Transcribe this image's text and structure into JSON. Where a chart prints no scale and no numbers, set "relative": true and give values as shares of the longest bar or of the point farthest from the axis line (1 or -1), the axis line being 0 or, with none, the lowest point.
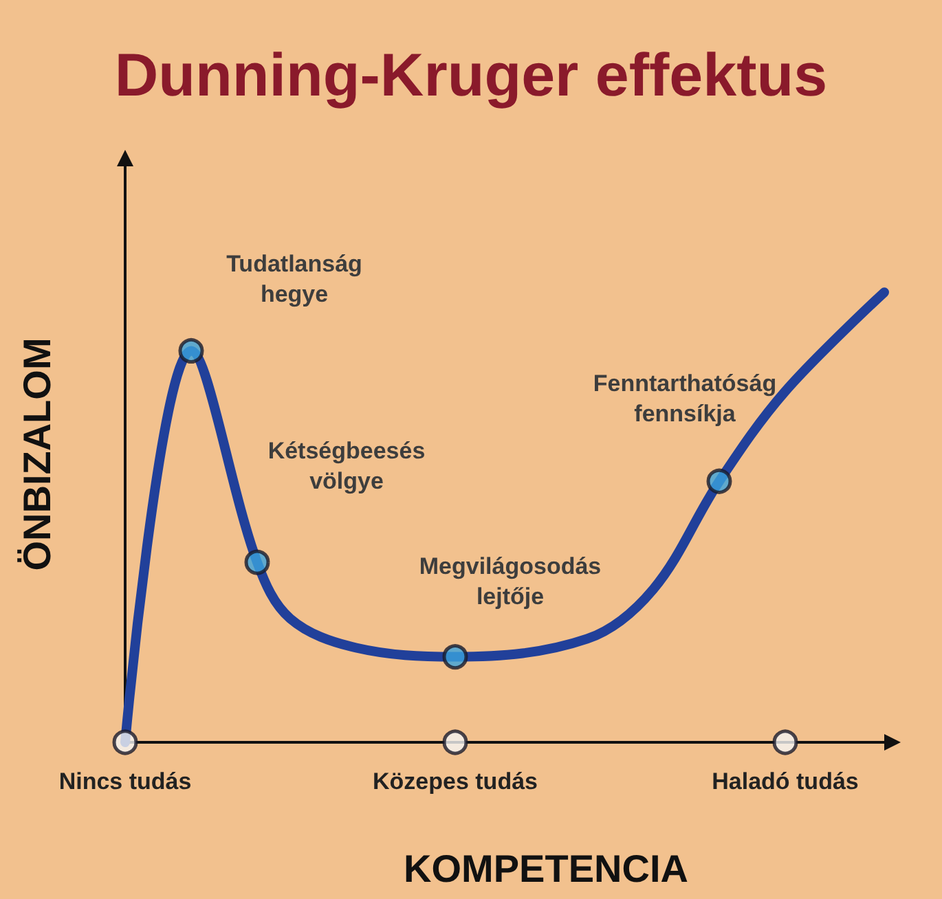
{
  "chart_data": {
    "type": "line",
    "title": "Dunning-Kruger effektus",
    "xlabel": "KOMPETENCIA",
    "ylabel": "ÖNBIZALOM",
    "relative": true,
    "marker": "none",
    "line_style": "solid",
    "categories": [
      "Nincs tudás",
      null,
      null,
      null,
      null,
      null,
      null,
      null,
      null,
      null,
      "Közepes tudás",
      null,
      null,
      null,
      null,
      null,
      null,
      null,
      null,
      null,
      "Haladó tudás",
      null,
      null,
      null
    ],
    "series": [
      {
        "color": "#21409a",
        "values": [
          0,
          null,
          0.87,
          null,
          0.4,
          0.275,
          null,
          0.21,
          null,
          null,
          0.19,
          null,
          null,
          null,
          0.23,
          null,
          0.34,
          null,
          0.58,
          null,
          0.78,
          null,
          null,
          1
        ]
      },
      {
        "type": "scatter",
        "color": "#f4f4f4",
        "marker": "circle",
        "values": [
          0,
          null,
          null,
          null,
          null,
          null,
          null,
          null,
          null,
          null,
          0,
          null,
          null,
          null,
          null,
          null,
          null,
          null,
          null,
          null,
          0,
          null,
          null,
          null
        ]
      },
      {
        "type": "scatter",
        "color": "#3ba3dd",
        "marker": "circle",
        "values": [
          null,
          null,
          0.87,
          null,
          0.4,
          null,
          null,
          null,
          null,
          null,
          0.19,
          null,
          null,
          null,
          null,
          null,
          null,
          null,
          0.58,
          null,
          null,
          null,
          null,
          null
        ]
      }
    ],
    "annotations": [
      "Tudatlanság\nhegye",
      "Kétségbeesés\nvölgye",
      "Megvilágosodás\nlejtője",
      "Fenntarthatóság\nfennsíkja"
    ]
  }
}
